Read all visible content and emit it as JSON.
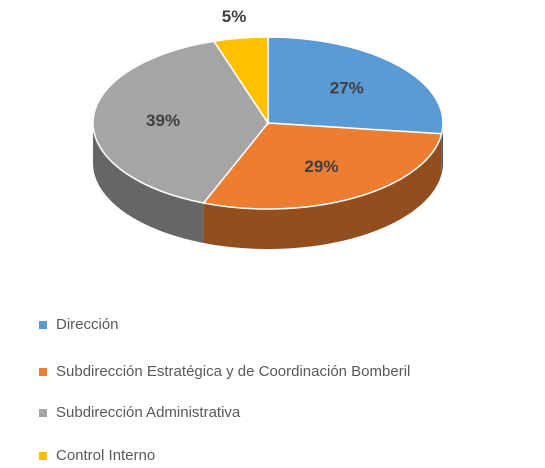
{
  "chart_data": {
    "type": "pie",
    "categories": [
      "Dirección",
      "Subdirección Estratégica y de Coordinación Bomberil",
      "Subdirección Administrativa",
      "Control Interno"
    ],
    "values": [
      27,
      29,
      39,
      5
    ],
    "value_labels": [
      "27%",
      "29%",
      "39%",
      "5%"
    ],
    "colors": [
      "#5b9bd5",
      "#ed7d31",
      "#a5a5a5",
      "#ffc000"
    ],
    "legend": "bottom"
  }
}
